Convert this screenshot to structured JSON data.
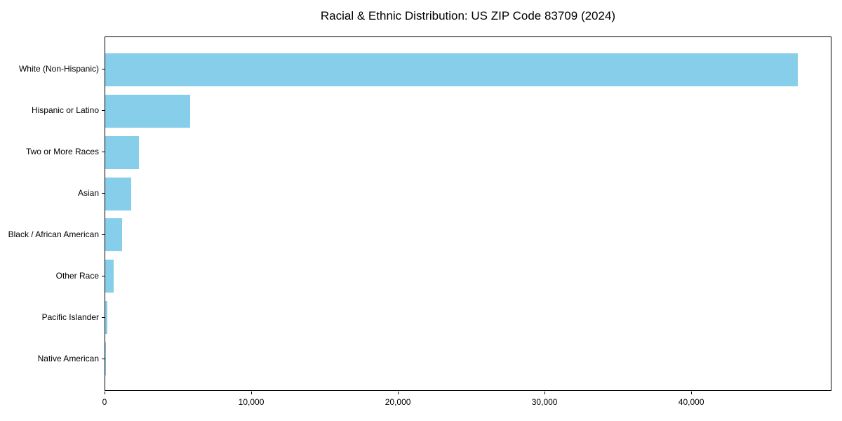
{
  "chart_data": {
    "type": "bar",
    "orientation": "horizontal",
    "title": "Racial & Ethnic Distribution: US ZIP Code 83709 (2024)",
    "categories": [
      "White (Non-Hispanic)",
      "Hispanic or Latino",
      "Two or More Races",
      "Asian",
      "Black / African American",
      "Other Race",
      "Pacific Islander",
      "Native American"
    ],
    "values": [
      47200,
      5800,
      2300,
      1750,
      1150,
      560,
      140,
      50
    ],
    "xlabel": "",
    "ylabel": "",
    "xlim": [
      0,
      49560
    ],
    "x_ticks": [
      0,
      10000,
      20000,
      30000,
      40000
    ],
    "x_tick_labels": [
      "0",
      "10,000",
      "20,000",
      "30,000",
      "40,000"
    ],
    "bar_color": "#87CEEB",
    "frame_color": "#000000",
    "grid": false,
    "legend": null
  }
}
